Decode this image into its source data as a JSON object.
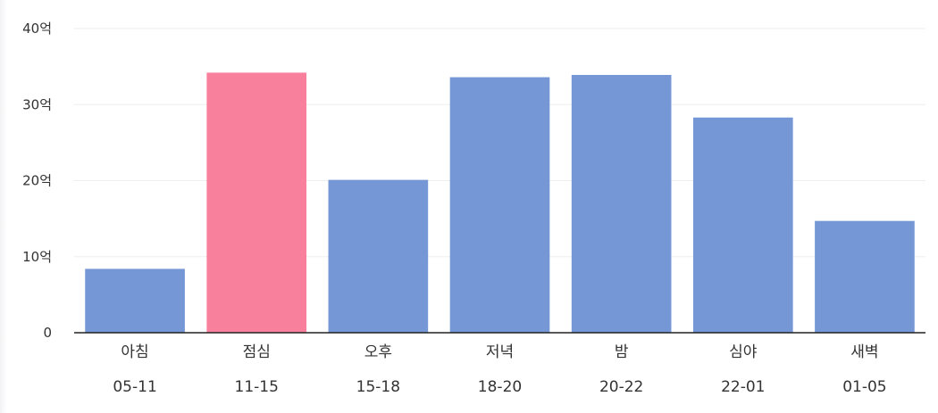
{
  "chart_data": {
    "type": "bar",
    "categories": [
      "아침",
      "점심",
      "오후",
      "저녁",
      "밤",
      "심야",
      "새벽"
    ],
    "ranges": [
      "05-11",
      "11-15",
      "15-18",
      "18-20",
      "20-22",
      "22-01",
      "01-05"
    ],
    "values": [
      8.4,
      34.2,
      20.1,
      33.6,
      33.9,
      28.3,
      14.7
    ],
    "value_unit": "억",
    "ylim": [
      0,
      40
    ],
    "yticks": [
      0,
      10,
      20,
      30,
      40
    ],
    "ytick_labels": [
      "0",
      "10억",
      "20억",
      "30억",
      "40억"
    ],
    "grid": true,
    "highlight_index": 1,
    "colors": {
      "bar": "#7597d6",
      "highlight": "#f9809c"
    }
  }
}
